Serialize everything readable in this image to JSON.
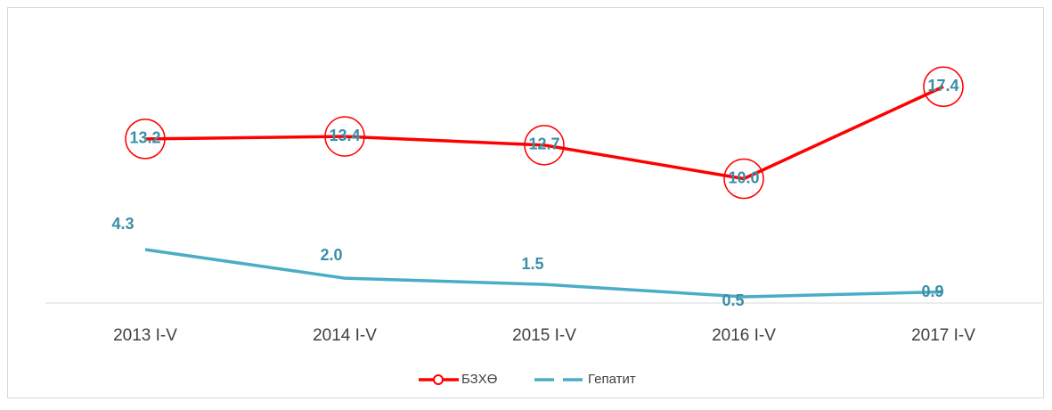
{
  "chart_data": {
    "type": "line",
    "categories": [
      "2013 I-V",
      "2014 I-V",
      "2015 I-V",
      "2016 I-V",
      "2017  I-V"
    ],
    "series": [
      {
        "name": "БЗХӨ",
        "color": "#ff0000",
        "values": [
          13.2,
          13.4,
          12.7,
          10.0,
          17.4
        ],
        "value_labels": [
          "13.2",
          "13.4",
          "12.7",
          "10.0",
          "17.4"
        ]
      },
      {
        "name": "Гепатит",
        "color": "#4bacc6",
        "values": [
          4.3,
          2.0,
          1.5,
          0.5,
          0.9
        ],
        "value_labels": [
          "4.3",
          "2.0",
          "1.5",
          "0.5",
          "0.9"
        ]
      }
    ],
    "ylim": [
      0,
      20
    ],
    "legend": "bottom"
  }
}
